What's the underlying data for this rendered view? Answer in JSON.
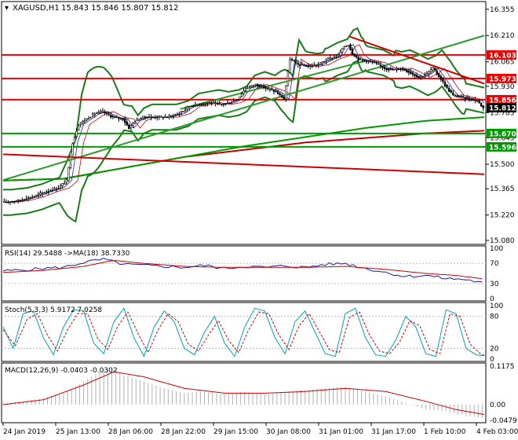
{
  "header": {
    "symbol": "XAGUSD,H1",
    "ohlc": "15.843 15.846 15.807 15.812"
  },
  "colors": {
    "bull_wick": "#000000",
    "ma_fast": "#1f1fb0",
    "ma_slow": "#c00000",
    "band": "#1a7a1a",
    "support": "#009900",
    "resistance": "#ee0000",
    "trend_down": "#cc0000",
    "trend_up": "#2a9a2a",
    "rsi": "#1a1aa0",
    "rsi_ma": "#cc0000",
    "stoch_k": "#00a0c0",
    "stoch_d": "#cc0000",
    "macd_hist": "#b0b0b0",
    "macd_signal": "#cc0000"
  },
  "chart_data": [
    {
      "type": "line",
      "panel": "price",
      "ylim": [
        15.08,
        16.38
      ],
      "price_ticks": [
        "16.355",
        "16.210",
        "16.065",
        "15.930",
        "15.785",
        "15.645",
        "15.500",
        "15.365",
        "15.220",
        "15.080"
      ],
      "levels": [
        {
          "label": "16.103",
          "value": 16.103,
          "kind": "resistance"
        },
        {
          "label": "15.973",
          "value": 15.973,
          "kind": "resistance"
        },
        {
          "label": "15.856",
          "value": 15.856,
          "kind": "resistance"
        },
        {
          "label": "15.670",
          "value": 15.67,
          "kind": "support"
        },
        {
          "label": "15.596",
          "value": 15.596,
          "kind": "support"
        }
      ],
      "last_price": {
        "label": "15.812",
        "value": 15.812
      },
      "price_path": [
        [
          0,
          15.29
        ],
        [
          8,
          15.3
        ],
        [
          15,
          15.32
        ],
        [
          22,
          15.35
        ],
        [
          28,
          15.37
        ],
        [
          32,
          15.41
        ],
        [
          35,
          15.62
        ],
        [
          38,
          15.72
        ],
        [
          42,
          15.75
        ],
        [
          46,
          15.78
        ],
        [
          50,
          15.79
        ],
        [
          55,
          15.76
        ],
        [
          60,
          15.75
        ],
        [
          63,
          15.7
        ],
        [
          66,
          15.74
        ],
        [
          70,
          15.76
        ],
        [
          76,
          15.76
        ],
        [
          82,
          15.76
        ],
        [
          88,
          15.78
        ],
        [
          93,
          15.82
        ],
        [
          98,
          15.83
        ],
        [
          103,
          15.84
        ],
        [
          108,
          15.83
        ],
        [
          113,
          15.84
        ],
        [
          117,
          15.86
        ],
        [
          121,
          15.92
        ],
        [
          126,
          15.94
        ],
        [
          131,
          15.92
        ],
        [
          136,
          15.9
        ],
        [
          140,
          15.86
        ],
        [
          143,
          16.08
        ],
        [
          147,
          16.05
        ],
        [
          152,
          16.04
        ],
        [
          157,
          16.05
        ],
        [
          162,
          16.08
        ],
        [
          167,
          16.1
        ],
        [
          170,
          16.15
        ],
        [
          172,
          16.16
        ],
        [
          174,
          16.11
        ],
        [
          177,
          16.08
        ],
        [
          181,
          16.07
        ],
        [
          185,
          16.06
        ],
        [
          190,
          16.03
        ],
        [
          194,
          16.02
        ],
        [
          198,
          16.03
        ],
        [
          202,
          16.01
        ],
        [
          207,
          15.98
        ],
        [
          211,
          16.0
        ],
        [
          214,
          16.03
        ],
        [
          218,
          15.97
        ],
        [
          221,
          15.92
        ],
        [
          224,
          15.88
        ],
        [
          228,
          15.87
        ],
        [
          232,
          15.86
        ],
        [
          236,
          15.85
        ],
        [
          239,
          15.81
        ]
      ],
      "trend_lines": [
        {
          "kind": "trend_up",
          "from": [
            0,
            15.413
          ],
          "to": [
            239,
            16.21
          ]
        },
        {
          "kind": "trend_up",
          "from": [
            88,
            15.805
          ],
          "to": [
            180,
            16.07
          ]
        },
        {
          "kind": "trend_down",
          "from": [
            172,
            16.205
          ],
          "to": [
            239,
            15.945
          ]
        },
        {
          "kind": "trend_down",
          "from": [
            0,
            15.555
          ],
          "to": [
            239,
            15.445
          ]
        }
      ],
      "curves": [
        {
          "kind": "ma_slow_long",
          "points": [
            [
              0,
              15.41
            ],
            [
              30,
              15.42
            ],
            [
              60,
              15.48
            ],
            [
              90,
              15.54
            ],
            [
              120,
              15.58
            ],
            [
              150,
              15.62
            ],
            [
              180,
              15.645
            ],
            [
              210,
              15.67
            ],
            [
              239,
              15.685
            ]
          ]
        },
        {
          "kind": "band_mid_long",
          "points": [
            [
              0,
              15.41
            ],
            [
              30,
              15.42
            ],
            [
              60,
              15.48
            ],
            [
              90,
              15.54
            ],
            [
              120,
              15.6
            ],
            [
              150,
              15.65
            ],
            [
              180,
              15.7
            ],
            [
              210,
              15.74
            ],
            [
              239,
              15.76
            ]
          ]
        }
      ]
    },
    {
      "type": "line",
      "panel": "rsi",
      "label": "RSI(14) 29.5488 ->MA(18) 38.7330",
      "ylim": [
        0,
        100
      ],
      "ticks": [
        "100",
        "70",
        "30",
        "0"
      ],
      "series": [
        {
          "kind": "rsi",
          "values": [
            [
              0,
              55
            ],
            [
              10,
              57
            ],
            [
              20,
              60
            ],
            [
              30,
              62
            ],
            [
              40,
              72
            ],
            [
              50,
              78
            ],
            [
              60,
              68
            ],
            [
              70,
              66
            ],
            [
              80,
              64
            ],
            [
              90,
              62
            ],
            [
              100,
              66
            ],
            [
              110,
              60
            ],
            [
              120,
              64
            ],
            [
              130,
              62
            ],
            [
              140,
              65
            ],
            [
              150,
              62
            ],
            [
              160,
              68
            ],
            [
              170,
              70
            ],
            [
              180,
              60
            ],
            [
              190,
              52
            ],
            [
              200,
              44
            ],
            [
              210,
              46
            ],
            [
              220,
              40
            ],
            [
              230,
              38
            ],
            [
              239,
              30
            ]
          ]
        },
        {
          "kind": "rsi_ma",
          "values": [
            [
              0,
              52
            ],
            [
              20,
              56
            ],
            [
              40,
              64
            ],
            [
              55,
              76
            ],
            [
              70,
              70
            ],
            [
              90,
              64
            ],
            [
              110,
              62
            ],
            [
              130,
              62
            ],
            [
              150,
              62
            ],
            [
              170,
              64
            ],
            [
              190,
              58
            ],
            [
              210,
              50
            ],
            [
              225,
              46
            ],
            [
              239,
              39
            ]
          ]
        }
      ]
    },
    {
      "type": "line",
      "panel": "stoch",
      "label": "Stoch(5,3,3) 5.9172 7.0258",
      "ylim": [
        0,
        100
      ],
      "ticks": [
        "100",
        "80",
        "20",
        "0"
      ],
      "series": [
        {
          "kind": "stoch_k",
          "values": [
            [
              0,
              60
            ],
            [
              5,
              20
            ],
            [
              10,
              85
            ],
            [
              15,
              90
            ],
            [
              20,
              40
            ],
            [
              25,
              8
            ],
            [
              30,
              60
            ],
            [
              35,
              92
            ],
            [
              40,
              90
            ],
            [
              45,
              30
            ],
            [
              50,
              10
            ],
            [
              55,
              70
            ],
            [
              60,
              95
            ],
            [
              65,
              40
            ],
            [
              70,
              5
            ],
            [
              75,
              60
            ],
            [
              80,
              90
            ],
            [
              85,
              70
            ],
            [
              90,
              20
            ],
            [
              95,
              8
            ],
            [
              100,
              50
            ],
            [
              105,
              80
            ],
            [
              110,
              30
            ],
            [
              115,
              5
            ],
            [
              120,
              60
            ],
            [
              125,
              95
            ],
            [
              130,
              90
            ],
            [
              135,
              40
            ],
            [
              140,
              10
            ],
            [
              145,
              70
            ],
            [
              150,
              90
            ],
            [
              155,
              50
            ],
            [
              160,
              10
            ],
            [
              165,
              5
            ],
            [
              170,
              85
            ],
            [
              175,
              95
            ],
            [
              180,
              40
            ],
            [
              185,
              8
            ],
            [
              190,
              5
            ],
            [
              195,
              35
            ],
            [
              200,
              80
            ],
            [
              205,
              60
            ],
            [
              210,
              10
            ],
            [
              215,
              5
            ],
            [
              220,
              92
            ],
            [
              225,
              85
            ],
            [
              230,
              20
            ],
            [
              235,
              8
            ],
            [
              239,
              6
            ]
          ]
        },
        {
          "kind": "stoch_d",
          "values": [
            [
              0,
              55
            ],
            [
              6,
              25
            ],
            [
              12,
              75
            ],
            [
              17,
              85
            ],
            [
              22,
              45
            ],
            [
              27,
              15
            ],
            [
              32,
              55
            ],
            [
              37,
              85
            ],
            [
              42,
              85
            ],
            [
              47,
              38
            ],
            [
              52,
              18
            ],
            [
              57,
              62
            ],
            [
              62,
              88
            ],
            [
              67,
              48
            ],
            [
              72,
              12
            ],
            [
              77,
              55
            ],
            [
              82,
              85
            ],
            [
              87,
              70
            ],
            [
              92,
              28
            ],
            [
              97,
              15
            ],
            [
              102,
              45
            ],
            [
              107,
              72
            ],
            [
              112,
              35
            ],
            [
              117,
              12
            ],
            [
              122,
              55
            ],
            [
              127,
              88
            ],
            [
              132,
              85
            ],
            [
              137,
              45
            ],
            [
              142,
              18
            ],
            [
              147,
              62
            ],
            [
              152,
              85
            ],
            [
              157,
              52
            ],
            [
              162,
              18
            ],
            [
              167,
              12
            ],
            [
              172,
              78
            ],
            [
              177,
              88
            ],
            [
              182,
              45
            ],
            [
              187,
              15
            ],
            [
              192,
              10
            ],
            [
              197,
              32
            ],
            [
              202,
              72
            ],
            [
              207,
              62
            ],
            [
              212,
              18
            ],
            [
              217,
              10
            ],
            [
              222,
              85
            ],
            [
              227,
              80
            ],
            [
              232,
              28
            ],
            [
              237,
              10
            ],
            [
              239,
              7
            ]
          ]
        }
      ]
    },
    {
      "type": "bar",
      "panel": "macd",
      "label": "MACD(12,26,9) -0.0403 -0.0302",
      "ylim": [
        -0.0479,
        0.1175
      ],
      "ticks": [
        "0.1175",
        "0.00",
        "-0.0479"
      ],
      "histogram": [
        [
          0,
          0.005
        ],
        [
          10,
          0.01
        ],
        [
          20,
          0.02
        ],
        [
          30,
          0.035
        ],
        [
          40,
          0.07
        ],
        [
          45,
          0.09
        ],
        [
          50,
          0.105
        ],
        [
          55,
          0.11
        ],
        [
          60,
          0.09
        ],
        [
          70,
          0.07
        ],
        [
          80,
          0.05
        ],
        [
          90,
          0.035
        ],
        [
          100,
          0.04
        ],
        [
          110,
          0.03
        ],
        [
          120,
          0.04
        ],
        [
          130,
          0.03
        ],
        [
          140,
          0.04
        ],
        [
          150,
          0.045
        ],
        [
          160,
          0.05
        ],
        [
          170,
          0.055
        ],
        [
          180,
          0.04
        ],
        [
          190,
          0.025
        ],
        [
          200,
          0.005
        ],
        [
          210,
          -0.015
        ],
        [
          220,
          -0.02
        ],
        [
          230,
          -0.035
        ],
        [
          239,
          -0.04
        ]
      ],
      "signal": [
        [
          0,
          0.0
        ],
        [
          20,
          0.015
        ],
        [
          40,
          0.06
        ],
        [
          55,
          0.1
        ],
        [
          70,
          0.085
        ],
        [
          90,
          0.05
        ],
        [
          110,
          0.035
        ],
        [
          130,
          0.035
        ],
        [
          150,
          0.04
        ],
        [
          170,
          0.05
        ],
        [
          190,
          0.04
        ],
        [
          210,
          0.01
        ],
        [
          225,
          -0.015
        ],
        [
          239,
          -0.03
        ]
      ]
    }
  ],
  "x_axis": {
    "labels": [
      "24 Jan 2019",
      "25 Jan 13:00",
      "28 Jan 06:00",
      "28 Jan 22:00",
      "29 Jan 15:00",
      "30 Jan 08:00",
      "31 Jan 01:00",
      "31 Jan 17:00",
      "1 Feb 10:00",
      "4 Feb 03:00"
    ]
  }
}
